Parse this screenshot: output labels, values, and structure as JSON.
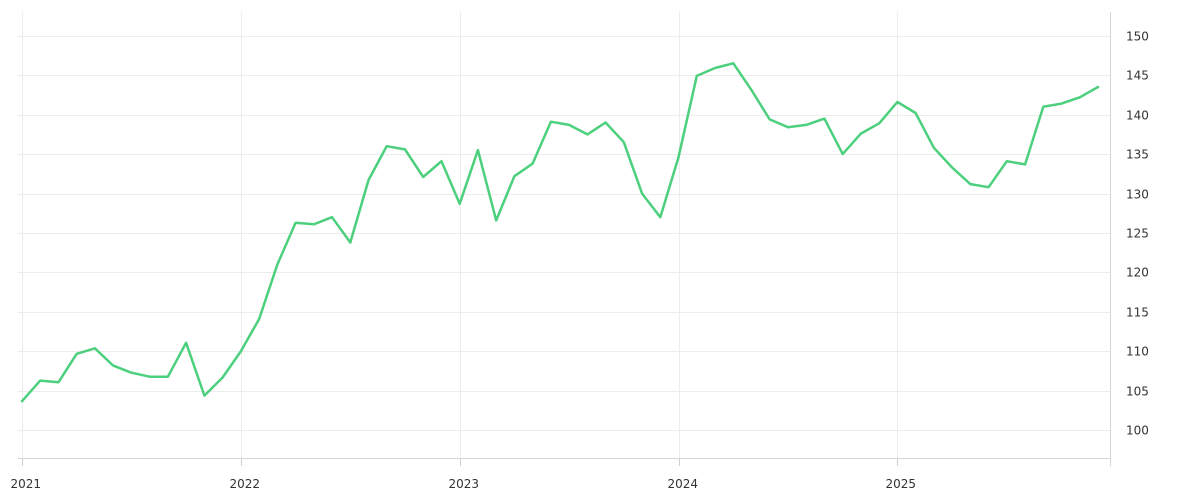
{
  "chart_data": {
    "type": "line",
    "title": "",
    "xlabel": "",
    "ylabel": "",
    "x_ticks": [
      "2021",
      "2022",
      "2023",
      "2024",
      "2025"
    ],
    "y_ticks": [
      100,
      105,
      110,
      115,
      120,
      125,
      130,
      135,
      140,
      145,
      150
    ],
    "ylim": [
      96.5,
      153
    ],
    "xlim": [
      "2021-01",
      "2025-12"
    ],
    "y_axis_position": "right",
    "grid": true,
    "legend": "none",
    "colors": {
      "line": "#4cd07d",
      "grid": "#ececec",
      "axis": "#d6d6d6",
      "text": "#333333"
    },
    "series": [
      {
        "x": [
          "2021-01",
          "2021-02",
          "2021-03",
          "2021-04",
          "2021-05",
          "2021-06",
          "2021-07",
          "2021-08",
          "2021-09",
          "2021-10",
          "2021-11",
          "2021-12",
          "2022-01",
          "2022-02",
          "2022-03",
          "2022-04",
          "2022-05",
          "2022-06",
          "2022-07",
          "2022-08",
          "2022-09",
          "2022-10",
          "2022-11",
          "2022-12",
          "2023-01",
          "2023-02",
          "2023-03",
          "2023-04",
          "2023-05",
          "2023-06",
          "2023-07",
          "2023-08",
          "2023-09",
          "2023-10",
          "2023-11",
          "2023-12",
          "2024-01",
          "2024-02",
          "2024-03",
          "2024-04",
          "2024-05",
          "2024-06",
          "2024-07",
          "2024-08",
          "2024-09",
          "2024-10",
          "2024-11",
          "2024-12",
          "2025-01",
          "2025-02",
          "2025-03",
          "2025-04",
          "2025-05",
          "2025-06",
          "2025-07",
          "2025-08",
          "2025-09",
          "2025-10",
          "2025-11",
          "2025-12"
        ],
        "values": [
          103.7,
          106.3,
          106.1,
          109.7,
          110.4,
          108.2,
          107.3,
          106.8,
          106.8,
          111.1,
          104.4,
          106.7,
          110.0,
          114.1,
          121.0,
          126.3,
          126.1,
          127.0,
          123.8,
          131.7,
          136.0,
          135.6,
          132.1,
          134.1,
          128.7,
          135.5,
          126.6,
          132.2,
          133.8,
          139.1,
          138.7,
          137.5,
          139.0,
          136.5,
          130.0,
          127.0,
          134.6,
          144.9,
          145.9,
          146.5,
          143.1,
          139.4,
          138.4,
          138.7,
          139.5,
          135.0,
          137.6,
          138.9,
          141.6,
          140.2,
          135.8,
          133.3,
          131.2,
          130.8,
          134.1,
          133.7,
          141.0,
          141.4,
          142.2,
          143.5
        ]
      }
    ]
  }
}
